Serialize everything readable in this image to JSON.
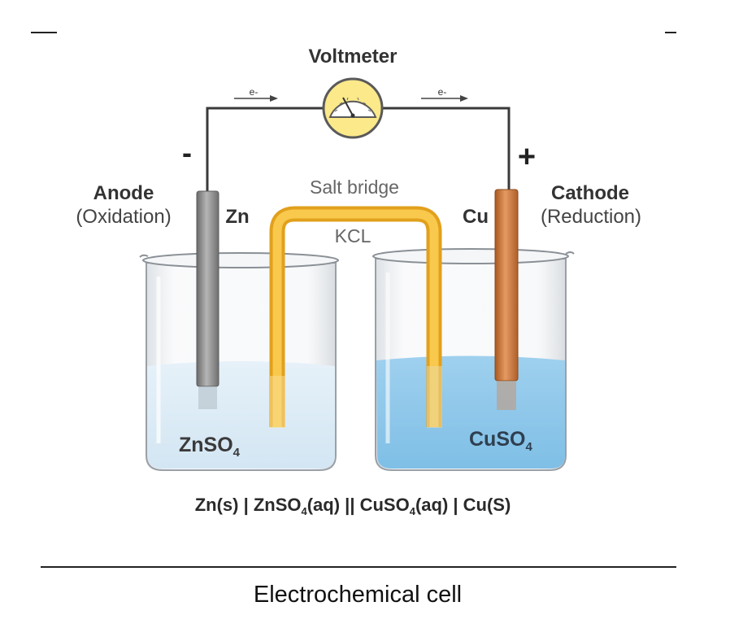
{
  "diagram": {
    "voltmeter_label": "Voltmeter",
    "electron_label": "e-",
    "negative_terminal": "-",
    "positive_terminal": "+",
    "salt_bridge_label": "Salt bridge",
    "salt_bridge_substance": "KCL",
    "anode": {
      "title": "Anode",
      "process": "(Oxidation)",
      "electrode": "Zn",
      "solution_main": "ZnSO",
      "solution_sub": "4"
    },
    "cathode": {
      "title": "Cathode",
      "process": "(Reduction)",
      "electrode": "Cu",
      "solution_main": "CuSO",
      "solution_sub": "4"
    },
    "cell_notation": {
      "p1": "Zn(s) |  ZnSO",
      "sub1": "4",
      "p2": "(aq) || CuSO",
      "sub2": "4",
      "p3": "(aq) | Cu(S)"
    },
    "caption": "Electrochemical cell",
    "colors": {
      "wire": "#3a3a3a",
      "voltmeter_fill": "#fbe98a",
      "salt_bridge": "#f2b832",
      "zinc_electrode": "#8c8c8c",
      "copper_electrode": "#c8743a",
      "znso4_solution": "#dcebf6",
      "cuso4_solution": "#8cc7ea"
    }
  }
}
